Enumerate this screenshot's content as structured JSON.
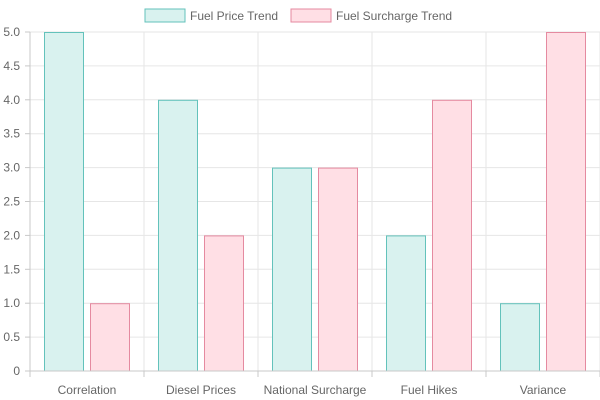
{
  "chart_data": {
    "type": "bar",
    "categories": [
      "Correlation",
      "Diesel Prices",
      "National Surcharge",
      "Fuel Hikes",
      "Variance"
    ],
    "series": [
      {
        "name": "Fuel Price Trend",
        "values": [
          5,
          4,
          3,
          2,
          1
        ],
        "fill": "#d9f2ef",
        "stroke": "#63c2bb"
      },
      {
        "name": "Fuel Surcharge Trend",
        "values": [
          1,
          2,
          3,
          4,
          5
        ],
        "fill": "#ffdfe5",
        "stroke": "#e58aa0"
      }
    ],
    "yticks": [
      "0",
      "0.5",
      "1.0",
      "1.5",
      "2.0",
      "2.5",
      "3.0",
      "3.5",
      "4.0",
      "4.5",
      "5.0"
    ],
    "ylim": [
      0,
      5
    ],
    "grid": true,
    "legend": "top-center"
  }
}
